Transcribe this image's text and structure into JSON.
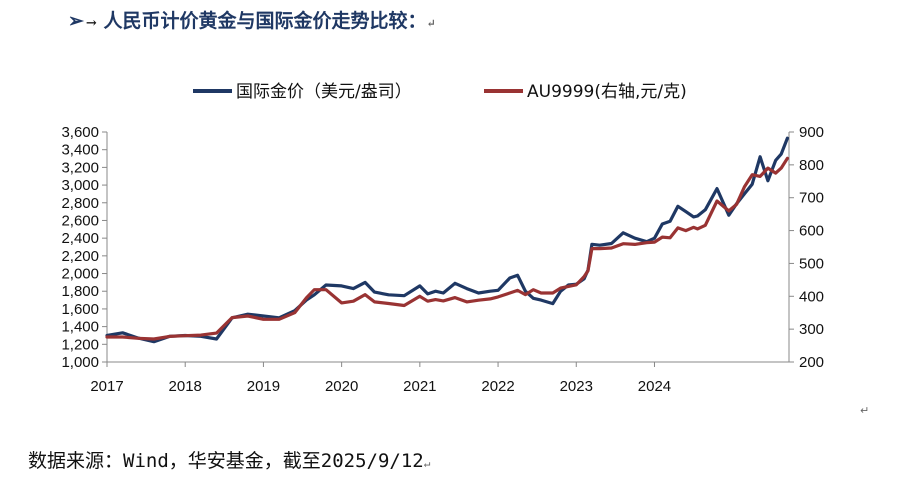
{
  "header": {
    "bullet": "➢",
    "arrow": "→",
    "title": "人民币计价黄金与国际金价走势比较：",
    "return_mark": "↵"
  },
  "chart_data": {
    "type": "line",
    "title": "人民币计价黄金与国际金价走势比较",
    "x_ticks": [
      "2017",
      "2018",
      "2019",
      "2020",
      "2021",
      "2022",
      "2023",
      "2024"
    ],
    "x_range": [
      2017.0,
      2025.72
    ],
    "y_left": {
      "label": "国际金价（美元/盎司）",
      "range": [
        1000,
        3600
      ],
      "ticks": [
        "1,000",
        "1,200",
        "1,400",
        "1,600",
        "1,800",
        "2,000",
        "2,200",
        "2,400",
        "2,600",
        "2,800",
        "3,000",
        "3,200",
        "3,400",
        "3,600"
      ]
    },
    "y_right": {
      "label": "AU9999(右轴,元/克)",
      "range": [
        200,
        900
      ],
      "ticks": [
        "200",
        "300",
        "400",
        "500",
        "600",
        "700",
        "800",
        "900"
      ]
    },
    "legend_position": "top-center",
    "series": [
      {
        "name": "国际金价（美元/盎司）",
        "axis": "left",
        "color": "#1f3864",
        "x": [
          2017.0,
          2017.2,
          2017.4,
          2017.6,
          2017.8,
          2018.0,
          2018.2,
          2018.4,
          2018.6,
          2018.8,
          2019.0,
          2019.2,
          2019.4,
          2019.55,
          2019.65,
          2019.8,
          2020.0,
          2020.15,
          2020.3,
          2020.42,
          2020.6,
          2020.8,
          2021.0,
          2021.1,
          2021.2,
          2021.3,
          2021.45,
          2021.6,
          2021.75,
          2021.9,
          2022.0,
          2022.15,
          2022.25,
          2022.35,
          2022.45,
          2022.55,
          2022.7,
          2022.8,
          2022.9,
          2023.0,
          2023.1,
          2023.15,
          2023.2,
          2023.3,
          2023.45,
          2023.6,
          2023.75,
          2023.9,
          2024.0,
          2024.1,
          2024.2,
          2024.3,
          2024.4,
          2024.5,
          2024.55,
          2024.65,
          2024.8,
          2024.95,
          2025.05,
          2025.15,
          2025.25,
          2025.35,
          2025.45,
          2025.55,
          2025.62,
          2025.7
        ],
        "values": [
          1300,
          1330,
          1270,
          1230,
          1290,
          1300,
          1290,
          1260,
          1500,
          1540,
          1520,
          1500,
          1580,
          1700,
          1760,
          1870,
          1860,
          1830,
          1900,
          1790,
          1760,
          1750,
          1860,
          1770,
          1800,
          1780,
          1890,
          1830,
          1780,
          1800,
          1810,
          1950,
          1980,
          1800,
          1720,
          1700,
          1660,
          1800,
          1870,
          1880,
          1940,
          2040,
          2330,
          2320,
          2340,
          2460,
          2400,
          2360,
          2400,
          2560,
          2590,
          2760,
          2700,
          2640,
          2650,
          2720,
          2960,
          2660,
          2790,
          2900,
          3010,
          3320,
          3050,
          3280,
          3350,
          3530
        ]
      },
      {
        "name": "AU9999(右轴,元/克)",
        "axis": "right",
        "color": "#993333",
        "x": [
          2017.0,
          2017.2,
          2017.4,
          2017.6,
          2017.8,
          2018.0,
          2018.2,
          2018.4,
          2018.6,
          2018.8,
          2019.0,
          2019.2,
          2019.4,
          2019.55,
          2019.65,
          2019.8,
          2020.0,
          2020.15,
          2020.3,
          2020.42,
          2020.6,
          2020.8,
          2021.0,
          2021.1,
          2021.2,
          2021.3,
          2021.45,
          2021.6,
          2021.75,
          2021.9,
          2022.0,
          2022.15,
          2022.25,
          2022.35,
          2022.45,
          2022.55,
          2022.7,
          2022.8,
          2022.9,
          2023.0,
          2023.1,
          2023.15,
          2023.2,
          2023.3,
          2023.45,
          2023.6,
          2023.75,
          2023.9,
          2024.0,
          2024.1,
          2024.2,
          2024.3,
          2024.4,
          2024.5,
          2024.55,
          2024.65,
          2024.8,
          2024.95,
          2025.05,
          2025.15,
          2025.25,
          2025.35,
          2025.45,
          2025.55,
          2025.62,
          2025.7
        ],
        "values": [
          276,
          276,
          272,
          270,
          278,
          280,
          282,
          288,
          335,
          340,
          330,
          330,
          350,
          395,
          420,
          420,
          380,
          385,
          405,
          383,
          378,
          372,
          400,
          385,
          390,
          386,
          396,
          383,
          388,
          392,
          398,
          410,
          418,
          405,
          420,
          410,
          410,
          425,
          430,
          435,
          460,
          478,
          545,
          545,
          547,
          560,
          558,
          563,
          565,
          580,
          578,
          608,
          600,
          610,
          605,
          616,
          690,
          660,
          680,
          733,
          770,
          765,
          790,
          775,
          790,
          820
        ]
      }
    ]
  },
  "source": {
    "text": "数据来源：Wind，华安基金，截至2025/9/12",
    "return_mark": "↵"
  },
  "colors": {
    "gold_usd": "#1f3864",
    "au9999": "#993333",
    "title": "#1f3864"
  }
}
